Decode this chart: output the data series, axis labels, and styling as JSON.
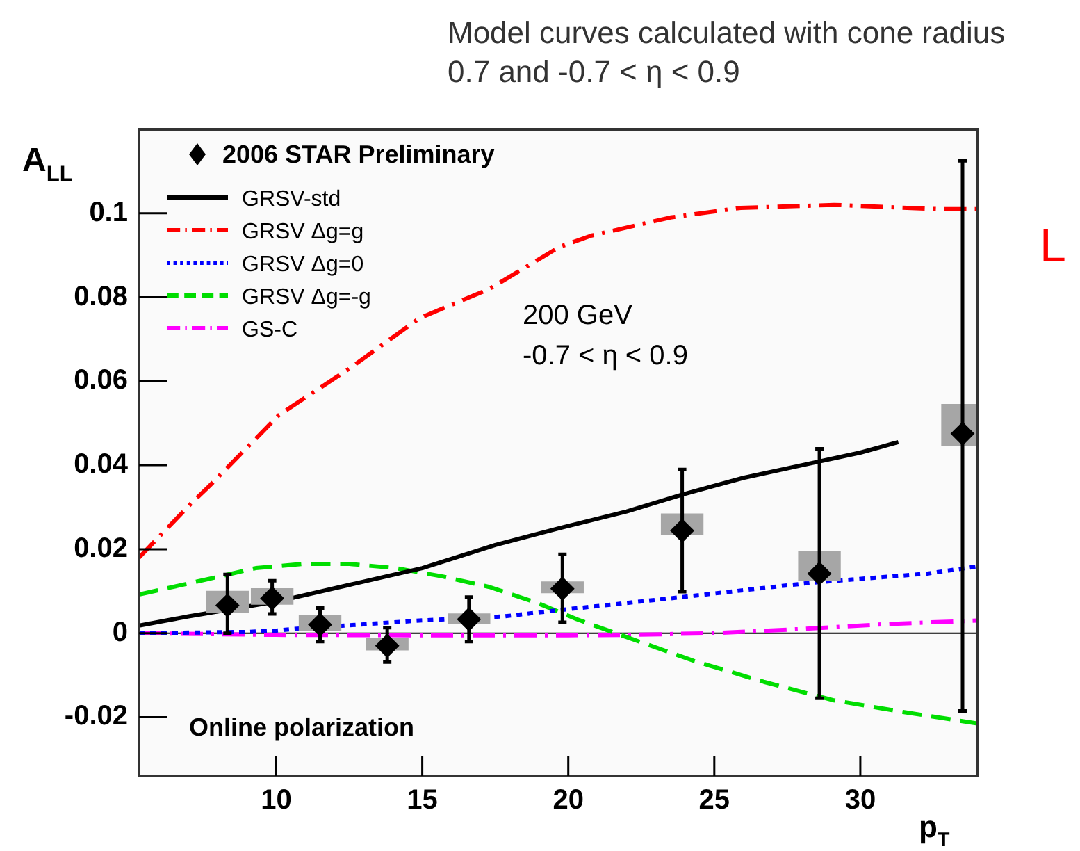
{
  "chart_data": {
    "type": "line",
    "xlabel": "p$_{T}$",
    "ylabel": "A$_{LL}$",
    "annotations": [
      "Model curves calculated with cone radius 0.7 and -0.7 < η < 0.9",
      "200 GeV",
      "-0.7 < η < 0.9",
      "Online polarization",
      "L"
    ],
    "xlim": [
      5.3,
      34
    ],
    "ylim": [
      -0.034,
      0.12
    ],
    "xticks": [
      10,
      15,
      20,
      25,
      30
    ],
    "yticks": [
      -0.02,
      0,
      0.02,
      0.04,
      0.06,
      0.08,
      0.1
    ],
    "legend": "top left",
    "ref_lines": [
      {
        "axis": "y",
        "value": 0,
        "color": "#000000"
      }
    ],
    "series": [
      {
        "type": "bar",
        "color": "#a6a6a6",
        "x": [
          8.33,
          9.86,
          11.5,
          13.8,
          16.6,
          19.8,
          23.9,
          28.6,
          33.5
        ],
        "base": [
          0.005,
          0.0069,
          0.0007,
          -0.004,
          0.0023,
          0.0096,
          0.0234,
          0.0125,
          0.0446
        ],
        "values": [
          0.005,
          0.0037,
          0.0036,
          0.0027,
          0.0023,
          0.0026,
          0.005,
          0.007,
          0.0099
        ]
      },
      {
        "type": "scatter",
        "name": "2006 STAR Preliminary",
        "color": "#000000",
        "marker": "diamond",
        "x": [
          8.33,
          9.86,
          11.5,
          13.8,
          16.6,
          19.8,
          23.9,
          28.6,
          33.5
        ],
        "values": [
          0.0066,
          0.0083,
          0.002,
          -0.003,
          0.0033,
          0.0106,
          0.0244,
          0.0142,
          0.0475
        ],
        "errors": [
          [
            0,
            0.014
          ],
          [
            0.0046,
            0.0125
          ],
          [
            -0.002,
            0.006
          ],
          [
            -0.0069,
            0.0013
          ],
          [
            -0.002,
            0.0086
          ],
          [
            0.0026,
            0.0188
          ],
          [
            0.0099,
            0.039
          ],
          [
            -0.0155,
            0.0439
          ],
          [
            -0.0185,
            0.1125
          ]
        ]
      },
      {
        "name": "GRSV-std",
        "color": "#000000",
        "line_style": "solid",
        "x": [
          5.3,
          7,
          10,
          12.5,
          15,
          17.5,
          19.7,
          22,
          23.9,
          26,
          28,
          30,
          31.3
        ],
        "values": [
          0.0018,
          0.004,
          0.0075,
          0.0115,
          0.0155,
          0.021,
          0.025,
          0.029,
          0.033,
          0.037,
          0.04,
          0.043,
          0.0455
        ]
      },
      {
        "name": "GRSV Δg=g",
        "color": "#ff0000",
        "line_style": "dashdot",
        "x": [
          5.3,
          7.1,
          7.7,
          8.9,
          10.1,
          12.5,
          14.9,
          17.3,
          19.7,
          20.8,
          23.5,
          25.9,
          29.1,
          32.7,
          34
        ],
        "values": [
          0.018,
          0.031,
          0.035,
          0.0435,
          0.052,
          0.063,
          0.075,
          0.082,
          0.092,
          0.0947,
          0.099,
          0.1013,
          0.102,
          0.101,
          0.101
        ]
      },
      {
        "name": "GRSV Δg=0",
        "color": "#0000ff",
        "line_style": "dotted",
        "x": [
          5.3,
          9,
          10,
          10.6,
          14.9,
          17.8,
          19.7,
          23.5,
          28.3,
          32.3,
          34
        ],
        "values": [
          0,
          0.0003,
          0.0006,
          0.001,
          0.003,
          0.004,
          0.0055,
          0.0083,
          0.012,
          0.0142,
          0.0159
        ]
      },
      {
        "name": "GRSV Δg=-g",
        "color": "#00dd00",
        "line_style": "dashed",
        "x": [
          5.3,
          7.8,
          9.3,
          10.9,
          12.5,
          14.1,
          15.7,
          17.3,
          18.9,
          20.3,
          21.9,
          24.3,
          26.7,
          29.1,
          31.5,
          34
        ],
        "values": [
          0.0092,
          0.0131,
          0.0155,
          0.0165,
          0.0165,
          0.0155,
          0.0135,
          0.011,
          0.0073,
          0.0033,
          -0.0007,
          -0.0066,
          -0.0116,
          -0.016,
          -0.0188,
          -0.0215
        ]
      },
      {
        "name": "GS-C",
        "color": "#ff00ff",
        "line_style": "dashdot",
        "x": [
          5.3,
          10,
          15,
          20,
          22,
          25,
          28,
          31,
          34
        ],
        "values": [
          0,
          -0.0004,
          -0.0005,
          -0.0005,
          -0.0004,
          0,
          0.001,
          0.0022,
          0.003
        ]
      }
    ]
  }
}
